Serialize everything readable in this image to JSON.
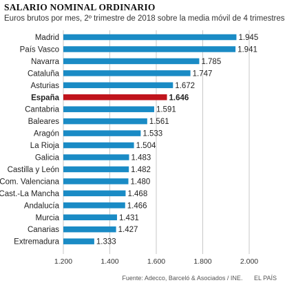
{
  "title": "SALARIO NOMINAL ORDINARIO",
  "subtitle": "Euros brutos por mes, 2º trimestre de 2018 sobre la media móvil de 4 trimestres",
  "source": "Fuente: Adecco, Barceló & Asociados / INE.",
  "brand": "EL PAÍS",
  "colors": {
    "bar": "#1a8bc5",
    "highlight": "#c0141c",
    "grid": "#b9b9b9",
    "text": "#222222"
  },
  "chart_data": {
    "type": "bar",
    "orientation": "horizontal",
    "categories": [
      "Madrid",
      "País Vasco",
      "Navarra",
      "Cataluña",
      "Asturias",
      "España",
      "Cantabria",
      "Baleares",
      "Aragón",
      "La Rioja",
      "Galicia",
      "Castilla y León",
      "Com. Valenciana",
      "Cast.-La Mancha",
      "Andalucía",
      "Murcia",
      "Canarias",
      "Extremadura"
    ],
    "values": [
      1945,
      1941,
      1785,
      1747,
      1672,
      1646,
      1591,
      1561,
      1533,
      1504,
      1483,
      1482,
      1480,
      1468,
      1466,
      1431,
      1427,
      1333
    ],
    "value_labels": [
      "1.945",
      "1.941",
      "1.785",
      "1.747",
      "1.672",
      "1.646",
      "1.591",
      "1.561",
      "1.533",
      "1.504",
      "1.483",
      "1.482",
      "1.480",
      "1.468",
      "1.466",
      "1.431",
      "1.427",
      "1.333"
    ],
    "highlight": "España",
    "xlim": [
      1200,
      2000
    ],
    "xticks": [
      1200,
      1400,
      1600,
      1800,
      2000
    ],
    "xtick_labels": [
      "1.200",
      "1.400",
      "1.600",
      "1.800",
      "2.000"
    ],
    "grid": true,
    "legend": "none"
  }
}
